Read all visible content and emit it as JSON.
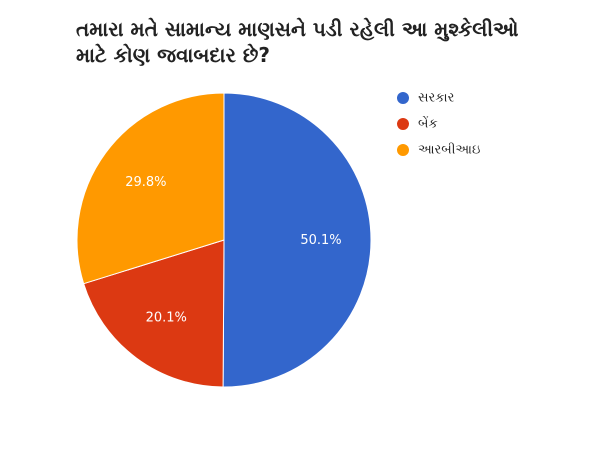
{
  "chart_data": {
    "type": "pie",
    "title": "તમારા મતે સામાન્ય માણસને પડી રહેલી આ મુશ્કેલીઓ માટે કોણ જવાબદાર છે?",
    "categories": [
      "સરકાર",
      "બેંક",
      "આરબીઆઇ"
    ],
    "values": [
      50.1,
      20.1,
      29.8
    ],
    "value_labels": [
      "50.1%",
      "20.1%",
      "29.8%"
    ],
    "colors": [
      "#3366cc",
      "#dc3912",
      "#ff9900"
    ],
    "legend": "right"
  }
}
